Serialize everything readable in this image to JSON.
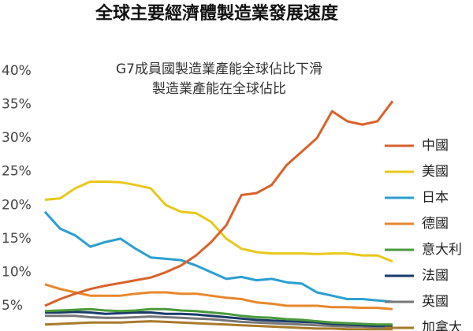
{
  "chart_data": {
    "type": "line",
    "title": "全球主要經濟體製造業發展速度",
    "annotations": [
      "G7成員國製造業產能全球佔比下滑",
      "製造業產能在全球佔比"
    ],
    "categories": [
      null,
      null,
      null,
      null,
      null,
      null,
      null,
      null,
      null,
      null,
      null,
      null,
      null,
      null,
      null,
      null,
      null,
      null,
      null,
      null,
      null,
      null,
      null,
      null
    ],
    "ylim": [
      1.2,
      40
    ],
    "yticks": [
      {
        "value": 5,
        "label": "5%"
      },
      {
        "value": 10,
        "label": "10%"
      },
      {
        "value": 15,
        "label": "15%"
      },
      {
        "value": 20,
        "label": "20%"
      },
      {
        "value": 25,
        "label": "25%"
      },
      {
        "value": 30,
        "label": "30%"
      },
      {
        "value": 35,
        "label": "35%"
      },
      {
        "value": 40,
        "label": "40%"
      }
    ],
    "grid": false,
    "legend": "right",
    "series": [
      {
        "name": "中國",
        "color": "#d9622b",
        "values": [
          5,
          6,
          6.8,
          7.5,
          8,
          8.4,
          8.8,
          9.2,
          10,
          11,
          12.5,
          14.5,
          17,
          21.5,
          21.8,
          23,
          26,
          28,
          30,
          34,
          32.5,
          32,
          32.5,
          35.5
        ]
      },
      {
        "name": "美國",
        "color": "#e8c81a",
        "values": [
          20.8,
          21,
          22.5,
          23.5,
          23.5,
          23.4,
          23,
          22.5,
          20,
          19,
          18.8,
          17.5,
          15,
          13.5,
          13,
          12.8,
          12.8,
          12.8,
          12.7,
          12.8,
          12.8,
          12.5,
          12.5,
          11.6
        ]
      },
      {
        "name": "日本",
        "color": "#2a9fd0",
        "values": [
          19,
          16.5,
          15.5,
          13.8,
          14.5,
          15,
          13.5,
          12.2,
          12,
          11.8,
          11,
          10,
          9,
          9.3,
          8.8,
          9,
          8.5,
          8.3,
          7,
          6.5,
          6,
          6,
          5.8,
          5.6
        ]
      },
      {
        "name": "德國",
        "color": "#e8872c",
        "values": [
          8.2,
          7.5,
          7,
          6.5,
          6.5,
          6.5,
          6.8,
          7,
          7,
          6.8,
          6.8,
          6.5,
          6.2,
          6,
          5.5,
          5.3,
          5,
          5,
          5,
          4.8,
          4.8,
          4.7,
          4.7,
          4.5
        ]
      },
      {
        "name": "意大利",
        "color": "#4a9a3a",
        "values": [
          4.2,
          4.3,
          4.4,
          4.5,
          4.3,
          4.2,
          4.3,
          4.5,
          4.5,
          4.3,
          4.2,
          4,
          3.8,
          3.5,
          3.3,
          3.2,
          3,
          2.9,
          2.7,
          2.5,
          2.4,
          2.3,
          2.2,
          2.2
        ]
      },
      {
        "name": "法國",
        "color": "#1a3a6a",
        "values": [
          4,
          4,
          4.1,
          4,
          3.8,
          3.9,
          4,
          4,
          3.8,
          3.8,
          3.7,
          3.5,
          3.3,
          3.1,
          2.9,
          2.8,
          2.7,
          2.6,
          2.5,
          2.3,
          2.2,
          2.1,
          2,
          2
        ]
      },
      {
        "name": "英國",
        "color": "#777777",
        "values": [
          3.5,
          3.5,
          3.5,
          3.3,
          3.2,
          3.2,
          3.3,
          3.4,
          3.3,
          3.2,
          3.1,
          3,
          2.8,
          2.6,
          2.5,
          2.4,
          2.3,
          2.2,
          2.1,
          2,
          1.9,
          1.9,
          1.8,
          1.8
        ]
      },
      {
        "name": "加拿大",
        "color": "#a87a2a",
        "values": [
          2.2,
          2.3,
          2.4,
          2.5,
          2.5,
          2.5,
          2.6,
          2.7,
          2.6,
          2.5,
          2.4,
          2.3,
          2.2,
          2.1,
          2,
          1.9,
          1.8,
          1.7,
          1.6,
          1.6,
          1.5,
          1.5,
          1.5,
          1.5
        ]
      }
    ]
  }
}
